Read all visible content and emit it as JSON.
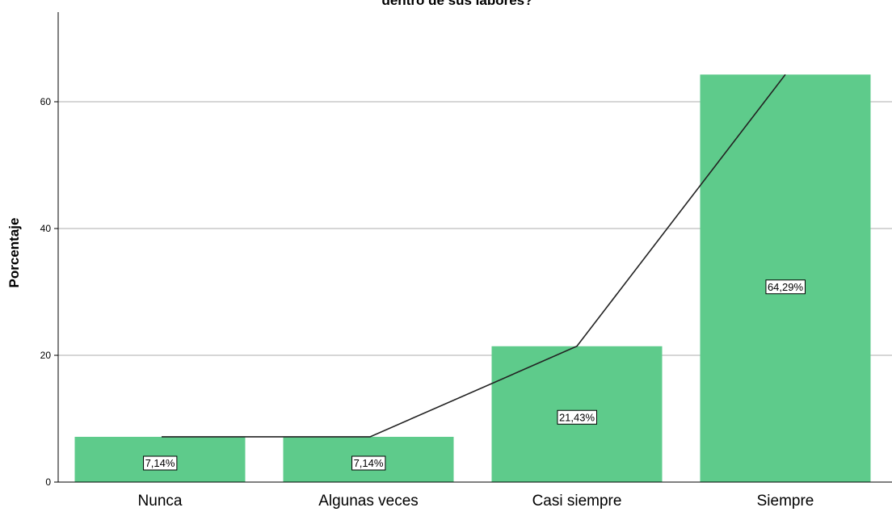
{
  "chart_data": {
    "type": "bar",
    "title": "dentro de sus labores?",
    "xlabel": "",
    "ylabel": "Porcentaje",
    "categories": [
      "Nunca",
      "Algunas veces",
      "Casi siempre",
      "Siempre"
    ],
    "values": [
      7.14,
      7.14,
      21.43,
      64.29
    ],
    "data_labels": [
      "7,14%",
      "7,14%",
      "21,43%",
      "64,29%"
    ],
    "yticks": [
      0,
      20,
      40,
      60
    ],
    "ylim": [
      0,
      73
    ],
    "grid": true,
    "overlay_line": {
      "type": "line",
      "values": [
        7.14,
        7.14,
        21.43,
        64.29
      ]
    },
    "colors": {
      "bar_fill": "#5ECB8B",
      "grid": "#BEBEBE",
      "line": "#222222",
      "axis": "#000000"
    }
  }
}
